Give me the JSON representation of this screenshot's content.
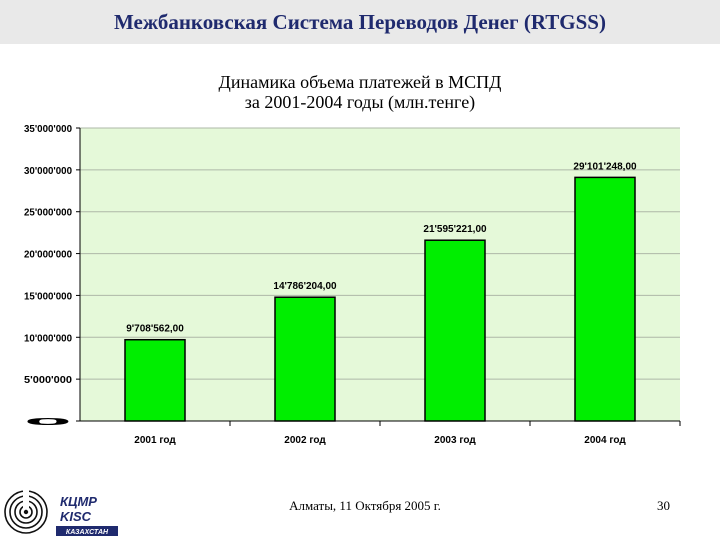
{
  "header": {
    "title": "Межбанковская Система Переводов Денег (RTGSS)"
  },
  "chart_data": {
    "type": "bar",
    "title_line1": "Динамика объема платежей в МСПД",
    "title_line2": "за 2001-2004 годы (млн.тенге)",
    "categories": [
      "2001 год",
      "2002 год",
      "2003 год",
      "2004 год"
    ],
    "values": [
      9708562,
      14786204,
      21595221,
      29101248
    ],
    "data_labels": [
      "9'708'562,00",
      "14'786'204,00",
      "21'595'221,00",
      "29'101'248,00"
    ],
    "ylim": [
      0,
      35000000
    ],
    "yticks": [
      0,
      5000000,
      10000000,
      15000000,
      20000000,
      25000000,
      30000000,
      35000000
    ],
    "ytick_labels": [
      "0",
      "5'000'000",
      "10'000'000",
      "15'000'000",
      "20'000'000",
      "25'000'000",
      "30'000'000",
      "35'000'000"
    ],
    "grid": true,
    "colors": {
      "plot_bg": "#e5f9d9",
      "bar": "#00ee00",
      "bar_edge": "#000000",
      "grid": "#aeb8a8"
    }
  },
  "footer": {
    "text": "Алматы, 11 Октября 2005 г.",
    "page": "30"
  },
  "logo": {
    "line1": "КЦМР",
    "line2": "KISC",
    "line3": "КАЗАХСТАН"
  }
}
